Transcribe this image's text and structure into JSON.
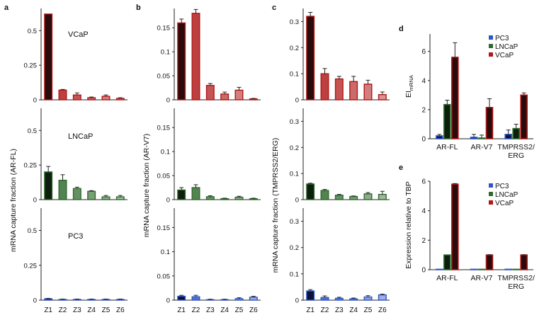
{
  "panel_letters": [
    "a",
    "b",
    "c",
    "d",
    "e"
  ],
  "colors": {
    "PC3": "#2f55c8",
    "LNCaP": "#2e6a2c",
    "VCaP": "#b01818",
    "vcap_dark": "#2a0a0a",
    "lncap_dark": "#0c1e0c",
    "pc3_dark": "#0a123a"
  },
  "chart_data": [
    {
      "id": "a",
      "type": "bar",
      "ylabel": "mRNA capture fraction (AR-FL)",
      "categories": [
        "Z1",
        "Z2",
        "Z3",
        "Z4",
        "Z5",
        "Z6"
      ],
      "panels": [
        {
          "line": "VCaP",
          "label": "VCaP",
          "ylim": [
            0,
            0.66
          ],
          "yticks": [
            0,
            0.25,
            0.5
          ],
          "yticklabels": [
            "0",
            "0.25",
            "0.5"
          ],
          "values": [
            0.62,
            0.07,
            0.035,
            0.015,
            0.025,
            0.01
          ],
          "errors": [
            0.0,
            0.005,
            0.015,
            0.005,
            0.01,
            0.005
          ]
        },
        {
          "line": "LNCaP",
          "label": "LNCaP",
          "ylim": [
            0,
            0.66
          ],
          "yticks": [
            0,
            0.25,
            0.5
          ],
          "yticklabels": [
            "0",
            "0.25",
            "0.5"
          ],
          "values": [
            0.2,
            0.14,
            0.08,
            0.06,
            0.02,
            0.02
          ],
          "errors": [
            0.04,
            0.04,
            0.01,
            0.005,
            0.01,
            0.01
          ]
        },
        {
          "line": "PC3",
          "label": "PC3",
          "ylim": [
            0,
            0.66
          ],
          "yticks": [
            0,
            0.25,
            0.5
          ],
          "yticklabels": [
            "0",
            "0.25",
            "0.5"
          ],
          "values": [
            0.01,
            0.005,
            0.005,
            0.005,
            0.005,
            0.005
          ],
          "errors": [
            0.003,
            0.003,
            0.003,
            0.003,
            0.003,
            0.003
          ]
        }
      ]
    },
    {
      "id": "b",
      "type": "bar",
      "ylabel": "mRNA capture fraction (AR-V7)",
      "categories": [
        "Z1",
        "Z2",
        "Z3",
        "Z4",
        "Z5",
        "Z6"
      ],
      "panels": [
        {
          "line": "VCaP",
          "ylim": [
            0,
            0.19
          ],
          "yticks": [
            0,
            0.05,
            0.1,
            0.15
          ],
          "yticklabels": [
            "0",
            "0.05",
            "0.1",
            "0.15"
          ],
          "values": [
            0.16,
            0.18,
            0.03,
            0.012,
            0.02,
            0.002
          ],
          "errors": [
            0.008,
            0.008,
            0.004,
            0.004,
            0.006,
            0.001
          ]
        },
        {
          "line": "LNCaP",
          "ylim": [
            0,
            0.19
          ],
          "yticks": [
            0,
            0.05,
            0.1,
            0.15
          ],
          "yticklabels": [
            "0",
            "0.05",
            "0.1",
            "0.15"
          ],
          "values": [
            0.02,
            0.025,
            0.006,
            0.002,
            0.005,
            0.002
          ],
          "errors": [
            0.005,
            0.006,
            0.002,
            0.001,
            0.002,
            0.001
          ]
        },
        {
          "line": "PC3",
          "ylim": [
            0,
            0.19
          ],
          "yticks": [
            0,
            0.05,
            0.1,
            0.15
          ],
          "yticklabels": [
            "0",
            "0.05",
            "0.1",
            "0.15"
          ],
          "values": [
            0.008,
            0.007,
            0.001,
            0.001,
            0.003,
            0.006
          ],
          "errors": [
            0.002,
            0.003,
            0.001,
            0.001,
            0.002,
            0.002
          ]
        }
      ]
    },
    {
      "id": "c",
      "type": "bar",
      "ylabel": "mRNA capture fraction (TMPRSS2/ERG)",
      "categories": [
        "Z1",
        "Z2",
        "Z3",
        "Z4",
        "Z5",
        "Z6"
      ],
      "panels": [
        {
          "line": "VCaP",
          "ylim": [
            0,
            0.35
          ],
          "yticks": [
            0,
            0.1,
            0.2,
            0.3
          ],
          "yticklabels": [
            "0",
            "0.1",
            "0.2",
            "0.3"
          ],
          "values": [
            0.32,
            0.1,
            0.08,
            0.07,
            0.06,
            0.02
          ],
          "errors": [
            0.015,
            0.02,
            0.01,
            0.02,
            0.015,
            0.01
          ]
        },
        {
          "line": "LNCaP",
          "ylim": [
            0,
            0.35
          ],
          "yticks": [
            0,
            0.1,
            0.2,
            0.3
          ],
          "yticklabels": [
            "0",
            "0.1",
            "0.2",
            "0.3"
          ],
          "values": [
            0.06,
            0.035,
            0.017,
            0.012,
            0.022,
            0.02
          ],
          "errors": [
            0.003,
            0.004,
            0.003,
            0.002,
            0.005,
            0.012
          ]
        },
        {
          "line": "PC3",
          "ylim": [
            0,
            0.35
          ],
          "yticks": [
            0,
            0.1,
            0.2,
            0.3
          ],
          "yticklabels": [
            "0",
            "0.1",
            "0.2",
            "0.3"
          ],
          "values": [
            0.035,
            0.01,
            0.007,
            0.005,
            0.012,
            0.02
          ],
          "errors": [
            0.005,
            0.006,
            0.004,
            0.003,
            0.005,
            0.003
          ]
        }
      ]
    },
    {
      "id": "d",
      "type": "bar",
      "ylabel": "EI_mRNA",
      "categories": [
        "AR-FL",
        "AR-V7",
        "TMPRSS2/ ERG"
      ],
      "ylim": [
        0,
        7.2
      ],
      "yticks": [
        0,
        2,
        4,
        6
      ],
      "yticklabels": [
        "0",
        "2",
        "4",
        "6"
      ],
      "legend": [
        "PC3",
        "LNCaP",
        "VCaP"
      ],
      "legend_position": "top-right",
      "series": [
        {
          "name": "PC3",
          "values": [
            0.2,
            0.1,
            0.3
          ],
          "errors": [
            0.1,
            0.2,
            0.3
          ]
        },
        {
          "name": "LNCaP",
          "values": [
            2.35,
            0.05,
            0.7
          ],
          "errors": [
            0.3,
            0.2,
            0.3
          ]
        },
        {
          "name": "VCaP",
          "values": [
            5.6,
            2.15,
            3.0
          ],
          "errors": [
            1.0,
            0.6,
            0.15
          ]
        }
      ]
    },
    {
      "id": "e",
      "type": "bar",
      "ylabel": "Expression relative to TBP",
      "categories": [
        "AR-FL",
        "AR-V7",
        "TMPRSS2/ ERG"
      ],
      "ylim": [
        0,
        6
      ],
      "yticks": [
        0,
        2,
        4,
        6
      ],
      "yticklabels": [
        "0",
        "2",
        "4",
        "6"
      ],
      "legend": [
        "PC3",
        "LNCaP",
        "VCaP"
      ],
      "legend_position": "top-right",
      "series": [
        {
          "name": "PC3",
          "values": [
            0.01,
            0.01,
            0.01
          ],
          "errors": [
            0,
            0,
            0
          ]
        },
        {
          "name": "LNCaP",
          "values": [
            1.0,
            0.02,
            0.01
          ],
          "errors": [
            0,
            0,
            0
          ]
        },
        {
          "name": "VCaP",
          "values": [
            5.8,
            1.0,
            1.0
          ],
          "errors": [
            0.04,
            0.02,
            0.02
          ]
        }
      ]
    }
  ]
}
